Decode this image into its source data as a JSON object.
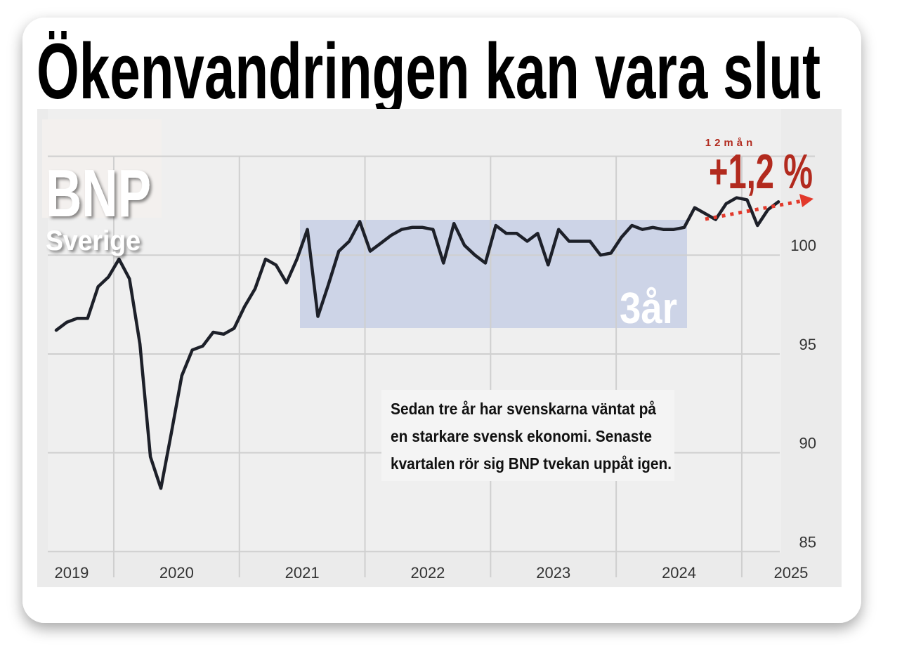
{
  "chart_data": {
    "type": "line",
    "title": "Ökenvandringen kan vara slut",
    "subtitle": "BNP",
    "region": "Sverige",
    "year_labels": [
      "2019",
      "2020",
      "2021",
      "2022",
      "2023",
      "2024",
      "2025"
    ],
    "series": [
      {
        "name": "BNP",
        "color": "#1d2029",
        "values": [
          96.2,
          96.6,
          96.8,
          96.8,
          98.4,
          98.9,
          99.8,
          98.8,
          95.5,
          89.8,
          88.2,
          91.0,
          93.9,
          95.2,
          95.4,
          96.1,
          96.0,
          96.3,
          97.4,
          98.3,
          99.8,
          99.5,
          98.6,
          99.8,
          101.3,
          96.9,
          98.5,
          100.2,
          100.7,
          101.7,
          100.2,
          100.6,
          101.0,
          101.3,
          101.4,
          101.4,
          101.3,
          99.6,
          101.6,
          100.5,
          100.0,
          99.6,
          101.5,
          101.1,
          101.1,
          100.7,
          101.1,
          99.5,
          101.3,
          100.7,
          100.7,
          100.7,
          100.0,
          100.1,
          100.9,
          101.5,
          101.3,
          101.4,
          101.3,
          101.3,
          101.4,
          102.4,
          102.1,
          101.8,
          102.6,
          102.9,
          102.8,
          101.5,
          102.3,
          102.7
        ]
      }
    ],
    "ylim": [
      83.2,
      107.4
    ],
    "yticks": [
      85,
      90,
      95,
      100
    ],
    "ygrid": [
      85,
      90,
      95,
      100,
      105
    ],
    "highlight_label": "3år",
    "trend_period": "12mån",
    "trend_label": "+1,2 %",
    "annotation": [
      "Sedan tre år har svenskarna väntat på",
      "en starkare svensk ekonomi. Senaste",
      "kvartalen rör sig BNP tvekan uppåt igen."
    ]
  }
}
